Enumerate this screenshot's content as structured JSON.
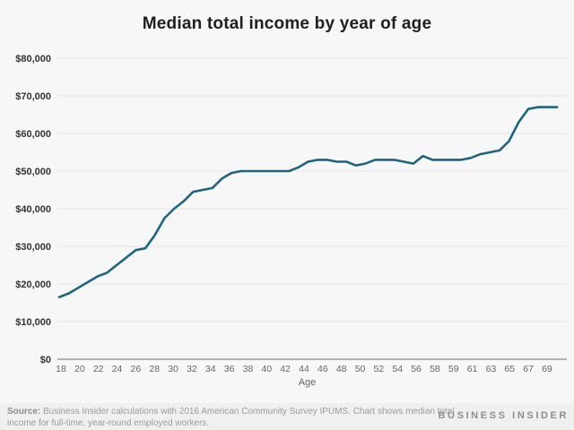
{
  "header": {
    "title": "Median total income by year of age"
  },
  "chart_data": {
    "type": "line",
    "title": "Median total income by year of age",
    "xlabel": "Age",
    "ylabel": "",
    "ylim": [
      0,
      80000
    ],
    "grid": true,
    "x_tick_labels": [
      "18",
      "20",
      "22",
      "24",
      "26",
      "28",
      "30",
      "32",
      "34",
      "36",
      "38",
      "40",
      "42",
      "44",
      "46",
      "48",
      "50",
      "52",
      "54",
      "56",
      "58",
      "59",
      "61",
      "63",
      "65",
      "67",
      "69"
    ],
    "y_ticks": [
      {
        "value": 0,
        "label": "$0"
      },
      {
        "value": 10000,
        "label": "$10,000"
      },
      {
        "value": 20000,
        "label": "$20,000"
      },
      {
        "value": 30000,
        "label": "$30,000"
      },
      {
        "value": 40000,
        "label": "$40,000"
      },
      {
        "value": 50000,
        "label": "$50,000"
      },
      {
        "value": 60000,
        "label": "$60,000"
      },
      {
        "value": 70000,
        "label": "$70,000"
      },
      {
        "value": 80000,
        "label": "$80,000"
      }
    ],
    "x": [
      18,
      19,
      20,
      21,
      22,
      23,
      24,
      25,
      26,
      27,
      28,
      29,
      30,
      31,
      32,
      33,
      34,
      35,
      36,
      37,
      38,
      39,
      40,
      41,
      42,
      43,
      44,
      45,
      46,
      47,
      48,
      49,
      50,
      51,
      52,
      53,
      54,
      55,
      56,
      57,
      58,
      59,
      60,
      61,
      62,
      63,
      64,
      65,
      66,
      67,
      68,
      69,
      70
    ],
    "series": [
      {
        "name": "Median total income",
        "values": [
          16500,
          17500,
          19000,
          20500,
          22000,
          23000,
          25000,
          27000,
          29000,
          29500,
          33000,
          37500,
          40000,
          42000,
          44500,
          45000,
          45500,
          48000,
          49500,
          50000,
          50000,
          50000,
          50000,
          50000,
          50000,
          51000,
          52500,
          53000,
          53000,
          52500,
          52500,
          51500,
          52000,
          53000,
          53000,
          53000,
          52500,
          52000,
          54000,
          53000,
          53000,
          53000,
          53000,
          53500,
          54500,
          55000,
          55500,
          58000,
          63000,
          66500,
          67000,
          67000,
          67000
        ]
      }
    ],
    "colors": {
      "line": "#1b6682",
      "grid": "#e9e9ea",
      "zero_line": "#b3b3b3",
      "y_tick_text": "#333333",
      "x_tick_text": "#666666"
    },
    "legend": "none"
  },
  "footer": {
    "source_label": "Source:",
    "source_text": " Business Insider calculations with 2016 American Community Survey IPUMS. Chart shows median total income for full-time, year-round employed workers.",
    "branding": "BUSINESS INSIDER"
  }
}
